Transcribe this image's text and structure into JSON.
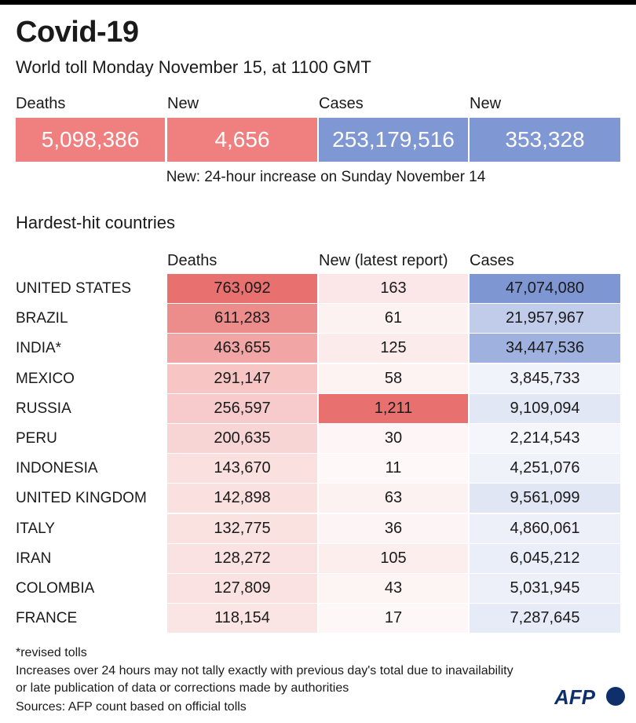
{
  "title": "Covid-19",
  "subtitle": "World toll Monday November 15, at 1100 GMT",
  "headline": {
    "deaths_label": "Deaths",
    "deaths_value": "5,098,386",
    "new_deaths_label": "New",
    "new_deaths_value": "4,656",
    "cases_label": "Cases",
    "cases_value": "253,179,516",
    "new_cases_label": "New",
    "new_cases_value": "353,328"
  },
  "new_note": "New: 24-hour increase on Sunday November 14",
  "section_title": "Hardest-hit countries",
  "columns": {
    "deaths": "Deaths",
    "new": "New (latest report)",
    "cases": "Cases"
  },
  "colors": {
    "red": "#f0807f",
    "blue": "#7f97d2"
  },
  "chart_data": {
    "type": "table",
    "title": "Hardest-hit countries",
    "columns": [
      "Deaths",
      "New (latest report)",
      "Cases"
    ],
    "rows": [
      {
        "country": "UNITED STATES",
        "deaths": "763,092",
        "new": "163",
        "cases": "47,074,080"
      },
      {
        "country": "BRAZIL",
        "deaths": "611,283",
        "new": "61",
        "cases": "21,957,967"
      },
      {
        "country": "INDIA*",
        "deaths": "463,655",
        "new": "125",
        "cases": "34,447,536"
      },
      {
        "country": "MEXICO",
        "deaths": "291,147",
        "new": "58",
        "cases": "3,845,733"
      },
      {
        "country": "RUSSIA",
        "deaths": "256,597",
        "new": "1,211",
        "cases": "9,109,094"
      },
      {
        "country": "PERU",
        "deaths": "200,635",
        "new": "30",
        "cases": "2,214,543"
      },
      {
        "country": "INDONESIA",
        "deaths": "143,670",
        "new": "11",
        "cases": "4,251,076"
      },
      {
        "country": "UNITED KINGDOM",
        "deaths": "142,898",
        "new": "63",
        "cases": "9,561,099"
      },
      {
        "country": "ITALY",
        "deaths": "132,775",
        "new": "36",
        "cases": "4,860,061"
      },
      {
        "country": "IRAN",
        "deaths": "128,272",
        "new": "105",
        "cases": "6,045,212"
      },
      {
        "country": "COLOMBIA",
        "deaths": "127,809",
        "new": "43",
        "cases": "5,031,945"
      },
      {
        "country": "FRANCE",
        "deaths": "118,154",
        "new": "17",
        "cases": "7,287,645"
      }
    ]
  },
  "footer": {
    "revised": "*revised tolls",
    "line1": "Increases over 24 hours may not tally exactly with previous day's total due to inavailability",
    "line2": "or late publication of data or corrections made by authorities",
    "sources": "Sources: AFP count based on official tolls"
  },
  "logo_text": "AFP"
}
